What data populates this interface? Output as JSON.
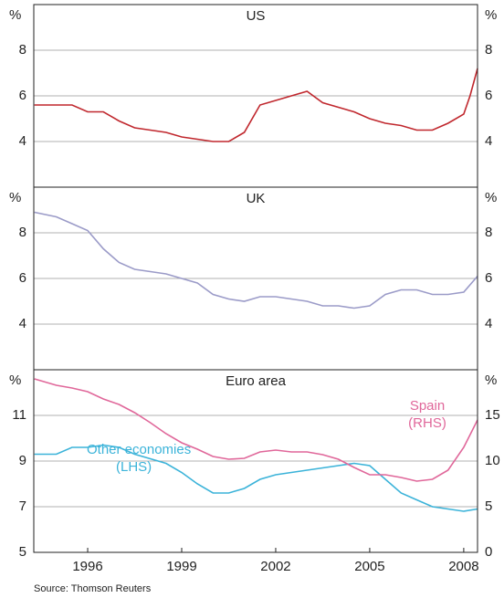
{
  "chart_data": [
    {
      "type": "line",
      "title": "US",
      "ylabel": "%",
      "y2label": "%",
      "color": "#c0272d",
      "x": [
        1994.3,
        1995,
        1995.5,
        1996,
        1996.5,
        1997,
        1997.5,
        1998,
        1998.5,
        1999,
        1999.5,
        2000,
        2000.5,
        2001,
        2001.5,
        2002,
        2002.5,
        2003,
        2003.5,
        2004,
        2004.5,
        2005,
        2005.5,
        2006,
        2006.5,
        2007,
        2007.5,
        2008,
        2008.2,
        2008.44
      ],
      "values": [
        5.6,
        5.6,
        5.6,
        5.3,
        5.3,
        4.9,
        4.6,
        4.5,
        4.4,
        4.2,
        4.1,
        4.0,
        4.0,
        4.4,
        5.6,
        5.8,
        6.0,
        6.2,
        5.7,
        5.5,
        5.3,
        5.0,
        4.8,
        4.7,
        4.5,
        4.5,
        4.8,
        5.2,
        6.0,
        7.2
      ],
      "xlim": [
        1994.28,
        2008.44
      ],
      "ylim": [
        2,
        10
      ],
      "yticks": [
        4,
        6,
        8
      ],
      "grid": true
    },
    {
      "type": "line",
      "title": "UK",
      "ylabel": "%",
      "y2label": "%",
      "color": "#9b9bc8",
      "x": [
        1994.3,
        1995,
        1995.5,
        1996,
        1996.5,
        1997,
        1997.5,
        1998,
        1998.5,
        1999,
        1999.5,
        2000,
        2000.5,
        2001,
        2001.5,
        2002,
        2002.5,
        2003,
        2003.5,
        2004,
        2004.5,
        2005,
        2005.5,
        2006,
        2006.5,
        2007,
        2007.5,
        2008,
        2008.44
      ],
      "values": [
        8.9,
        8.7,
        8.4,
        8.1,
        7.3,
        6.7,
        6.4,
        6.3,
        6.2,
        6.0,
        5.8,
        5.3,
        5.1,
        5.0,
        5.2,
        5.2,
        5.1,
        5.0,
        4.8,
        4.8,
        4.7,
        4.8,
        5.3,
        5.5,
        5.5,
        5.3,
        5.3,
        5.4,
        6.1
      ],
      "xlim": [
        1994.28,
        2008.44
      ],
      "ylim": [
        2,
        10
      ],
      "yticks": [
        4,
        6,
        8
      ],
      "grid": true
    },
    {
      "type": "line",
      "title": "Euro area",
      "ylabel": "%",
      "y2label": "%",
      "x": [
        1994.3,
        1995,
        1995.5,
        1996,
        1996.5,
        1997,
        1997.5,
        1998,
        1998.5,
        1999,
        1999.5,
        2000,
        2000.5,
        2001,
        2001.5,
        2002,
        2002.5,
        2003,
        2003.5,
        2004,
        2004.5,
        2005,
        2005.5,
        2006,
        2006.5,
        2007,
        2007.5,
        2008,
        2008.44
      ],
      "series": [
        {
          "name": "Other economies",
          "note": "(LHS)",
          "color": "#3bb3d9",
          "values": [
            9.3,
            9.3,
            9.6,
            9.6,
            9.7,
            9.6,
            9.3,
            9.1,
            8.9,
            8.5,
            8.0,
            7.6,
            7.6,
            7.8,
            8.2,
            8.4,
            8.5,
            8.6,
            8.7,
            8.8,
            8.9,
            8.8,
            8.2,
            7.6,
            7.3,
            7.0,
            6.9,
            6.8,
            6.9
          ]
        },
        {
          "name": "Spain",
          "note": "(RHS)",
          "color": "#e0679a",
          "axis": "y2",
          "values": [
            19.0,
            18.3,
            18.0,
            17.6,
            16.8,
            16.2,
            15.3,
            14.2,
            13.0,
            12.0,
            11.3,
            10.5,
            10.2,
            10.3,
            11.0,
            11.2,
            11.0,
            11.0,
            10.7,
            10.2,
            9.3,
            8.5,
            8.5,
            8.2,
            7.8,
            8.0,
            9.0,
            11.5,
            14.5
          ]
        }
      ],
      "xlim": [
        1994.28,
        2008.44
      ],
      "xticks": [
        1996,
        1999,
        2002,
        2005,
        2008
      ],
      "ylim": [
        5,
        13
      ],
      "yticks": [
        5,
        7,
        9,
        11
      ],
      "y2lim": [
        0,
        20
      ],
      "y2ticks": [
        0,
        5,
        10,
        15
      ],
      "grid": true
    }
  ],
  "source": "Source: Thomson Reuters"
}
